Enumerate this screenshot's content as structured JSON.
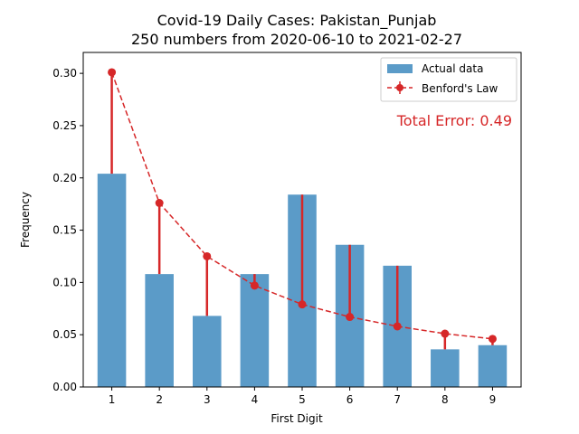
{
  "chart_data": {
    "type": "bar",
    "title": "Covid-19 Daily Cases: Pakistan_Punjab",
    "subtitle": "250 numbers from 2020-06-10 to 2021-02-27",
    "xlabel": "First Digit",
    "ylabel": "Frequency",
    "categories": [
      "1",
      "2",
      "3",
      "4",
      "5",
      "6",
      "7",
      "8",
      "9"
    ],
    "ylim": [
      0,
      0.32
    ],
    "yticks": [
      "0.00",
      "0.05",
      "0.10",
      "0.15",
      "0.20",
      "0.25",
      "0.30"
    ],
    "series": [
      {
        "name": "Actual data",
        "type": "bar",
        "color": "#5b9bc8",
        "values": [
          0.204,
          0.108,
          0.068,
          0.108,
          0.184,
          0.136,
          0.116,
          0.036,
          0.04
        ]
      },
      {
        "name": "Benford's Law",
        "type": "line",
        "color": "#d62728",
        "values": [
          0.301,
          0.176,
          0.125,
          0.097,
          0.079,
          0.067,
          0.058,
          0.051,
          0.046
        ]
      }
    ],
    "legend_position": "top-right",
    "annotation": "Total Error: 0.49",
    "grid": false
  }
}
